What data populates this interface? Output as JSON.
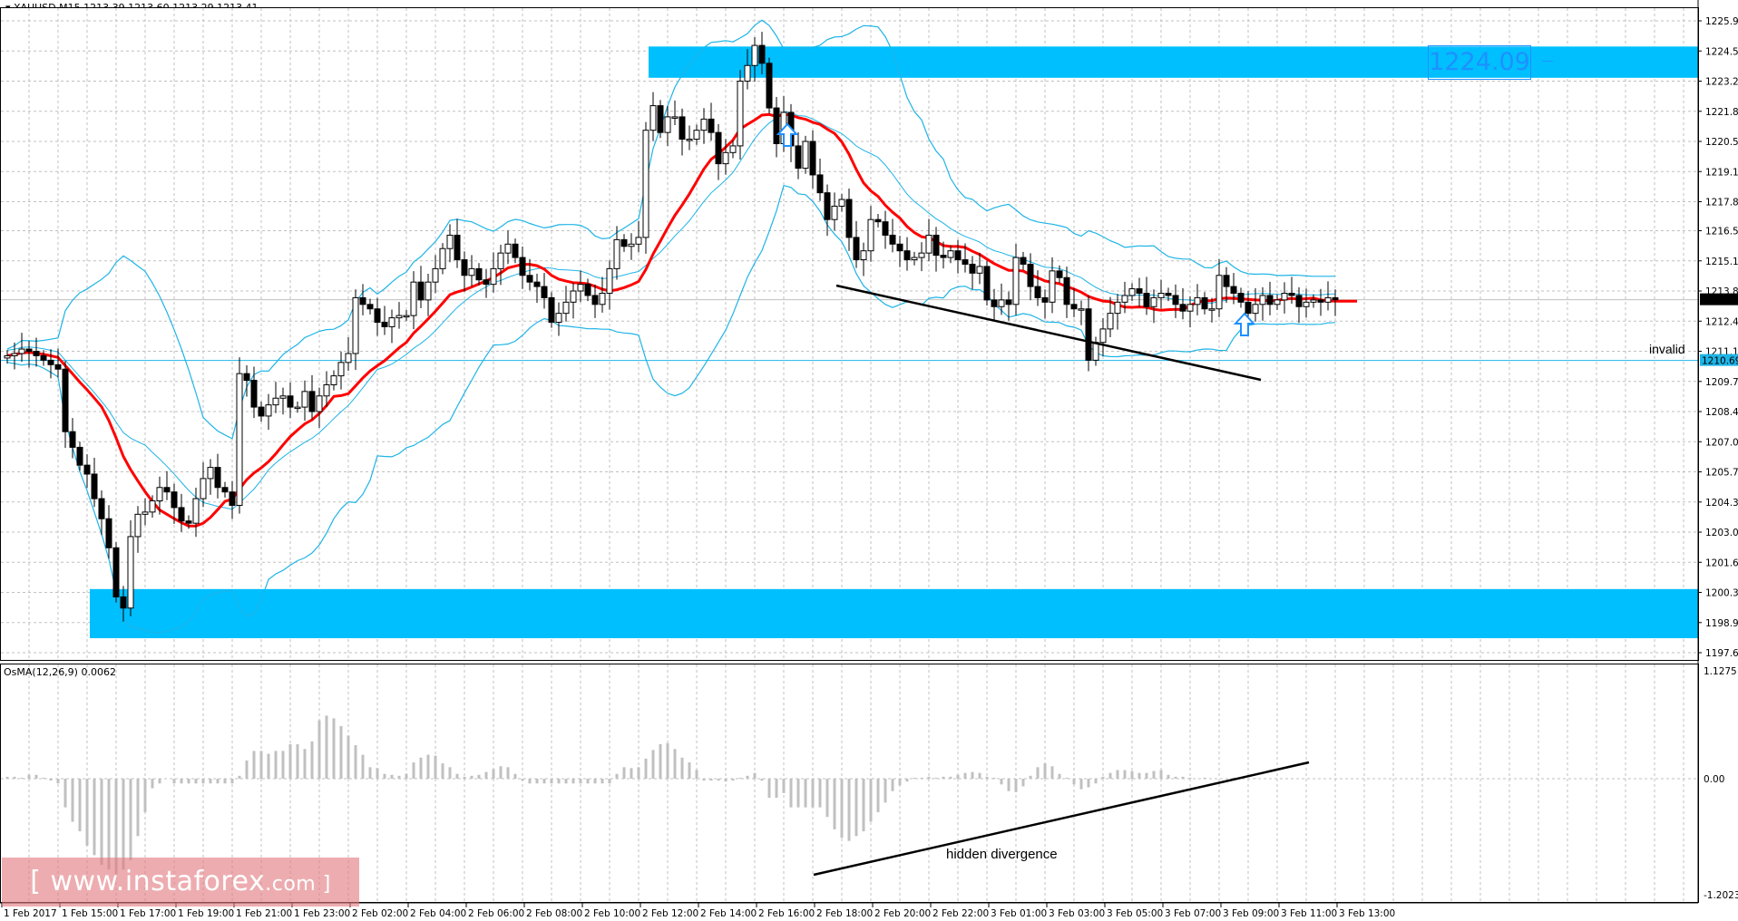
{
  "header": {
    "symbol": "XAUUSD,M15",
    "open": "1213.39",
    "high": "1213.60",
    "low": "1213.29",
    "close": "1213.41",
    "title_text": "▾ XAUUSD,M15  1213.39 1213.60 1213.29 1213.41"
  },
  "indicator": {
    "label": "OsMA(12,26,9) 0.0062",
    "axis_top": "1.1275",
    "axis_zero": "0.00",
    "axis_bottom": "-1.2023"
  },
  "annotations": {
    "resistance_label": "1224.09",
    "invalid_label": "invalid",
    "invalid_level": "1210.69",
    "divergence_label": "hidden divergence",
    "current_price": "1213.41"
  },
  "watermark": {
    "text": "[ www.instaforex",
    "suffix": ".com ]"
  },
  "colors": {
    "zone": "#00bfff",
    "ma": "#ff0000",
    "bands": "#1eb4e6",
    "histogram": "#c0c0c0",
    "grid": "#c0c0c0",
    "watermark": "#e27a80",
    "invalid_line": "#1eb4e6"
  },
  "chart_data": [
    {
      "type": "candlestick",
      "title": "XAUUSD,M15",
      "ylabel": "Price",
      "ylim": [
        1197.6,
        1225.9
      ],
      "y_ticks": [
        "1225.90",
        "1224.55",
        "1223.20",
        "1221.85",
        "1220.50",
        "1219.15",
        "1217.80",
        "1216.50",
        "1215.15",
        "1213.80",
        "1212.45",
        "1211.10",
        "1209.75",
        "1208.40",
        "1207.05",
        "1205.70",
        "1204.35",
        "1203.00",
        "1201.65",
        "1200.30",
        "1198.95",
        "1197.60"
      ],
      "x_ticks": [
        "1 Feb 2017",
        "1 Feb 15:00",
        "1 Feb 17:00",
        "1 Feb 19:00",
        "1 Feb 21:00",
        "1 Feb 23:00",
        "2 Feb 02:00",
        "2 Feb 04:00",
        "2 Feb 06:00",
        "2 Feb 08:00",
        "2 Feb 10:00",
        "2 Feb 12:00",
        "2 Feb 14:00",
        "2 Feb 16:00",
        "2 Feb 18:00",
        "2 Feb 20:00",
        "2 Feb 22:00",
        "3 Feb 01:00",
        "3 Feb 03:00",
        "3 Feb 05:00",
        "3 Feb 07:00",
        "3 Feb 09:00",
        "3 Feb 11:00",
        "3 Feb 13:00"
      ],
      "closes": [
        1210.9,
        1211.0,
        1211.2,
        1211.1,
        1210.9,
        1210.7,
        1210.5,
        1210.3,
        1207.5,
        1206.8,
        1206.0,
        1205.6,
        1204.5,
        1203.6,
        1202.3,
        1200.1,
        1199.6,
        1202.8,
        1203.8,
        1203.9,
        1204.4,
        1205.0,
        1204.8,
        1204.1,
        1203.5,
        1203.4,
        1204.5,
        1205.4,
        1205.9,
        1205.0,
        1204.8,
        1204.2,
        1210.1,
        1209.8,
        1208.6,
        1208.2,
        1208.7,
        1209.0,
        1209.1,
        1208.6,
        1208.6,
        1209.3,
        1208.4,
        1209.1,
        1209.6,
        1210.0,
        1210.6,
        1211.0,
        1213.5,
        1213.2,
        1213.0,
        1212.4,
        1212.2,
        1212.6,
        1212.7,
        1212.7,
        1214.2,
        1213.4,
        1214.2,
        1214.8,
        1215.7,
        1216.3,
        1215.2,
        1214.5,
        1214.8,
        1214.3,
        1214.1,
        1214.8,
        1215.5,
        1215.9,
        1215.3,
        1214.5,
        1214.2,
        1214.0,
        1213.5,
        1212.4,
        1212.8,
        1213.3,
        1213.8,
        1214.1,
        1213.6,
        1213.2,
        1213.7,
        1214.8,
        1216.1,
        1215.8,
        1215.9,
        1216.2,
        1221.0,
        1222.1,
        1220.9,
        1221.6,
        1221.6,
        1220.6,
        1220.6,
        1221.0,
        1221.5,
        1220.9,
        1219.5,
        1220.0,
        1220.3,
        1223.2,
        1223.9,
        1224.8,
        1224.0,
        1222.0,
        1220.4,
        1221.8,
        1220.3,
        1219.3,
        1220.5,
        1219.0,
        1218.2,
        1217.0,
        1217.6,
        1217.9,
        1216.2,
        1215.2,
        1215.6,
        1217.0,
        1216.9,
        1216.3,
        1215.9,
        1215.6,
        1215.2,
        1215.3,
        1215.5,
        1216.3,
        1215.4,
        1215.3,
        1215.6,
        1215.2,
        1215.0,
        1214.6,
        1214.9,
        1213.4,
        1213.1,
        1213.4,
        1213.2,
        1215.3,
        1215.0,
        1214.0,
        1213.5,
        1213.3,
        1214.7,
        1214.4,
        1213.2,
        1213.0,
        1213.0,
        1210.7,
        1211.5,
        1212.1,
        1212.8,
        1213.3,
        1213.6,
        1213.9,
        1213.7,
        1213.1,
        1213.5,
        1213.7,
        1213.6,
        1213.2,
        1212.9,
        1213.2,
        1213.5,
        1213.0,
        1213.0,
        1214.5,
        1214.0,
        1213.7,
        1213.3,
        1212.8,
        1213.2,
        1213.6,
        1213.2,
        1213.4,
        1213.7,
        1213.6,
        1213.1,
        1213.3,
        1213.4,
        1213.3,
        1213.5,
        1213.41
      ],
      "overlays": [
        "MA (red)",
        "Bollinger Bands (light blue)",
        "Trendline (black)",
        "Support zone 1198.3-1200.4",
        "Resistance zone 1223.3-1224.7"
      ]
    },
    {
      "type": "bar",
      "title": "OsMA(12,26,9)",
      "ylim": [
        -1.2023,
        1.1275
      ],
      "values": [
        0.02,
        0.02,
        0.01,
        0.04,
        0.04,
        0.01,
        -0.02,
        -0.05,
        -0.3,
        -0.45,
        -0.55,
        -0.7,
        -0.8,
        -0.9,
        -0.95,
        -1.0,
        -0.95,
        -0.85,
        -0.6,
        -0.35,
        -0.1,
        -0.05,
        0.0,
        -0.05,
        -0.05,
        -0.05,
        -0.05,
        -0.05,
        -0.05,
        -0.05,
        -0.05,
        -0.05,
        0.03,
        0.19,
        0.29,
        0.29,
        0.26,
        0.29,
        0.29,
        0.36,
        0.36,
        0.31,
        0.39,
        0.61,
        0.66,
        0.63,
        0.55,
        0.45,
        0.35,
        0.25,
        0.12,
        0.11,
        0.05,
        0.04,
        0.03,
        0.05,
        0.17,
        0.22,
        0.25,
        0.24,
        0.16,
        0.12,
        0.05,
        0.02,
        0.03,
        0.04,
        0.07,
        0.1,
        0.13,
        0.12,
        0.05,
        -0.02,
        -0.05,
        -0.05,
        -0.05,
        -0.05,
        -0.05,
        -0.05,
        -0.05,
        -0.05,
        -0.05,
        -0.05,
        -0.05,
        -0.05,
        0.05,
        0.12,
        0.11,
        0.12,
        0.21,
        0.3,
        0.36,
        0.37,
        0.31,
        0.22,
        0.17,
        0.09,
        -0.02,
        -0.02,
        -0.02,
        -0.03,
        -0.02,
        0.01,
        0.03,
        0.06,
        -0.02,
        -0.2,
        -0.2,
        -0.15,
        -0.3,
        -0.3,
        -0.3,
        -0.3,
        -0.3,
        -0.4,
        -0.53,
        -0.62,
        -0.65,
        -0.6,
        -0.55,
        -0.45,
        -0.35,
        -0.25,
        -0.13,
        -0.07,
        -0.03,
        0.01,
        0.01,
        0.02,
        0.01,
        0.02,
        0.02,
        0.04,
        0.06,
        0.07,
        0.06,
        0.02,
        0.01,
        -0.06,
        -0.13,
        -0.14,
        -0.08,
        0.03,
        0.12,
        0.16,
        0.13,
        0.05,
        0.01,
        -0.06,
        -0.11,
        -0.09,
        -0.05,
        0.02,
        0.06,
        0.09,
        0.09,
        0.08,
        0.06,
        0.06,
        0.08,
        0.09,
        0.04,
        0.02,
        0.02,
        0.01,
        0.0,
        0.01,
        0.0,
        0.0,
        0.0,
        0.01,
        0.0,
        0.0,
        0.006
      ]
    }
  ]
}
